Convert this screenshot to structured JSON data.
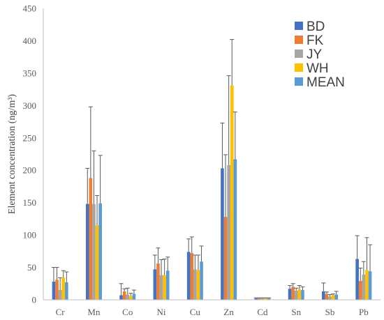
{
  "chart_data": {
    "type": "bar",
    "title": "",
    "xlabel": "",
    "ylabel": "Element concentration (ng/m³)",
    "ylim": [
      0,
      450
    ],
    "yticks": [
      0,
      50,
      100,
      150,
      200,
      250,
      300,
      350,
      400,
      450
    ],
    "grid": false,
    "legend_position": "top-right",
    "error_bars": "upper",
    "categories": [
      "Cr",
      "Mn",
      "Co",
      "Ni",
      "Cu",
      "Zn",
      "Cd",
      "Sn",
      "Sb",
      "Pb"
    ],
    "series": [
      {
        "name": "BD",
        "color": "#4472C4",
        "values": [
          28,
          148,
          7,
          47,
          74,
          203,
          2,
          17,
          13,
          63
        ],
        "errors": [
          22,
          55,
          18,
          22,
          20,
          70,
          1,
          5,
          13,
          36
        ]
      },
      {
        "name": "FK",
        "color": "#ED7D31",
        "values": [
          31,
          188,
          13,
          56,
          72,
          128,
          2,
          20,
          9,
          29
        ],
        "errors": [
          19,
          110,
          4,
          24,
          25,
          96,
          1,
          5,
          3,
          20
        ]
      },
      {
        "name": "JY",
        "color": "#A5A5A5",
        "values": [
          15,
          148,
          8,
          38,
          47,
          208,
          2,
          14,
          5,
          39
        ],
        "errors": [
          19,
          82,
          10,
          24,
          22,
          138,
          1,
          4,
          3,
          20
        ]
      },
      {
        "name": "WH",
        "color": "#FFC000",
        "values": [
          34,
          115,
          6,
          38,
          46,
          331,
          2,
          16,
          7,
          46
        ],
        "errors": [
          11,
          46,
          4,
          25,
          23,
          71,
          1,
          6,
          2,
          50
        ]
      },
      {
        "name": "MEAN",
        "color": "#5B9BD5",
        "values": [
          27,
          149,
          9,
          45,
          59,
          217,
          2,
          15,
          8,
          44
        ],
        "errors": [
          16,
          74,
          6,
          21,
          24,
          73,
          1,
          5,
          5,
          41
        ]
      }
    ]
  }
}
